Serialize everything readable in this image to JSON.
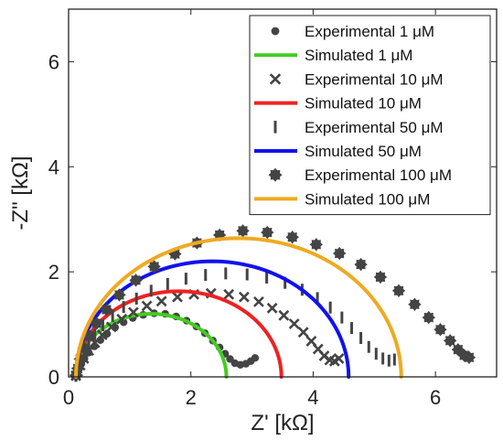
{
  "chart_data": {
    "type": "scatter",
    "xlabel": "Z' [kΩ]",
    "ylabel": "-Z\" [kΩ]",
    "xlim": [
      0,
      7
    ],
    "ylim": [
      0,
      7
    ],
    "x_ticks": [
      "0",
      "2",
      "4",
      "6"
    ],
    "y_ticks": [
      "0",
      "2",
      "4",
      "6"
    ],
    "x_tick_values": [
      0,
      2,
      4,
      6
    ],
    "y_tick_values": [
      0,
      2,
      4,
      6
    ],
    "grid": false,
    "legend_position": "top-right",
    "series": [
      {
        "name": "Experimental 1 μM",
        "kind": "marker",
        "marker": "dot",
        "color": "#444444",
        "points": [
          [
            0.12,
            0.02
          ],
          [
            0.14,
            0.08
          ],
          [
            0.17,
            0.16
          ],
          [
            0.21,
            0.25
          ],
          [
            0.26,
            0.35
          ],
          [
            0.33,
            0.46
          ],
          [
            0.42,
            0.58
          ],
          [
            0.52,
            0.7
          ],
          [
            0.63,
            0.82
          ],
          [
            0.76,
            0.94
          ],
          [
            0.9,
            1.04
          ],
          [
            1.05,
            1.12
          ],
          [
            1.22,
            1.18
          ],
          [
            1.4,
            1.21
          ],
          [
            1.58,
            1.2
          ],
          [
            1.76,
            1.15
          ],
          [
            1.93,
            1.07
          ],
          [
            2.09,
            0.96
          ],
          [
            2.23,
            0.83
          ],
          [
            2.36,
            0.69
          ],
          [
            2.47,
            0.56
          ],
          [
            2.56,
            0.44
          ],
          [
            2.64,
            0.34
          ],
          [
            2.72,
            0.26
          ],
          [
            2.81,
            0.23
          ],
          [
            2.9,
            0.25
          ],
          [
            2.98,
            0.3
          ],
          [
            3.05,
            0.36
          ]
        ]
      },
      {
        "name": "Simulated 1 μM",
        "kind": "line",
        "color": "#44cc22",
        "arc": {
          "x0": 0.12,
          "x1": 2.58,
          "height": 1.2
        }
      },
      {
        "name": "Experimental 10 μM",
        "kind": "marker",
        "marker": "x",
        "color": "#444444",
        "points": [
          [
            0.12,
            0.02
          ],
          [
            0.15,
            0.1
          ],
          [
            0.19,
            0.22
          ],
          [
            0.25,
            0.35
          ],
          [
            0.33,
            0.5
          ],
          [
            0.43,
            0.65
          ],
          [
            0.55,
            0.8
          ],
          [
            0.7,
            0.95
          ],
          [
            0.87,
            1.1
          ],
          [
            1.06,
            1.23
          ],
          [
            1.28,
            1.35
          ],
          [
            1.52,
            1.44
          ],
          [
            1.78,
            1.52
          ],
          [
            2.05,
            1.57
          ],
          [
            2.33,
            1.59
          ],
          [
            2.62,
            1.57
          ],
          [
            2.87,
            1.52
          ],
          [
            3.11,
            1.43
          ],
          [
            3.33,
            1.31
          ],
          [
            3.52,
            1.17
          ],
          [
            3.69,
            1.01
          ],
          [
            3.84,
            0.85
          ],
          [
            3.97,
            0.68
          ],
          [
            4.08,
            0.53
          ],
          [
            4.18,
            0.4
          ],
          [
            4.27,
            0.32
          ],
          [
            4.35,
            0.3
          ],
          [
            4.42,
            0.35
          ]
        ]
      },
      {
        "name": "Simulated 10 μM",
        "kind": "line",
        "color": "#ee2222",
        "arc": {
          "x0": 0.12,
          "x1": 3.48,
          "height": 1.63
        }
      },
      {
        "name": "Experimental 50 μM",
        "kind": "marker",
        "marker": "bar",
        "color": "#444444",
        "points": [
          [
            0.12,
            0.02
          ],
          [
            0.15,
            0.12
          ],
          [
            0.19,
            0.27
          ],
          [
            0.25,
            0.44
          ],
          [
            0.33,
            0.62
          ],
          [
            0.43,
            0.8
          ],
          [
            0.56,
            0.98
          ],
          [
            0.72,
            1.16
          ],
          [
            0.9,
            1.33
          ],
          [
            1.11,
            1.49
          ],
          [
            1.35,
            1.64
          ],
          [
            1.62,
            1.77
          ],
          [
            1.92,
            1.87
          ],
          [
            2.24,
            1.94
          ],
          [
            2.57,
            1.97
          ],
          [
            2.92,
            1.95
          ],
          [
            3.24,
            1.89
          ],
          [
            3.54,
            1.79
          ],
          [
            3.82,
            1.66
          ],
          [
            4.07,
            1.5
          ],
          [
            4.28,
            1.32
          ],
          [
            4.47,
            1.13
          ],
          [
            4.63,
            0.93
          ],
          [
            4.78,
            0.74
          ],
          [
            4.91,
            0.57
          ],
          [
            5.03,
            0.44
          ],
          [
            5.14,
            0.35
          ],
          [
            5.24,
            0.31
          ],
          [
            5.33,
            0.33
          ]
        ]
      },
      {
        "name": "Simulated 50 μM",
        "kind": "line",
        "color": "#1111ee",
        "arc": {
          "x0": 0.12,
          "x1": 4.58,
          "height": 2.2
        }
      },
      {
        "name": "Experimental 100 μM",
        "kind": "marker",
        "marker": "star",
        "color": "#444444",
        "points": [
          [
            0.12,
            0.03
          ],
          [
            0.15,
            0.16
          ],
          [
            0.19,
            0.34
          ],
          [
            0.25,
            0.55
          ],
          [
            0.34,
            0.78
          ],
          [
            0.46,
            1.02
          ],
          [
            0.62,
            1.28
          ],
          [
            0.83,
            1.56
          ],
          [
            1.1,
            1.84
          ],
          [
            1.4,
            2.1
          ],
          [
            1.74,
            2.34
          ],
          [
            2.1,
            2.55
          ],
          [
            2.47,
            2.7
          ],
          [
            2.85,
            2.78
          ],
          [
            3.25,
            2.75
          ],
          [
            3.66,
            2.66
          ],
          [
            4.05,
            2.52
          ],
          [
            4.43,
            2.35
          ],
          [
            4.78,
            2.14
          ],
          [
            5.1,
            1.9
          ],
          [
            5.4,
            1.64
          ],
          [
            5.66,
            1.38
          ],
          [
            5.89,
            1.13
          ],
          [
            6.08,
            0.9
          ],
          [
            6.24,
            0.69
          ],
          [
            6.37,
            0.52
          ],
          [
            6.47,
            0.41
          ],
          [
            6.55,
            0.37
          ]
        ]
      },
      {
        "name": "Simulated 100 μM",
        "kind": "line",
        "color": "#eeaa22",
        "arc": {
          "x0": 0.12,
          "x1": 5.44,
          "height": 2.64
        }
      }
    ]
  }
}
